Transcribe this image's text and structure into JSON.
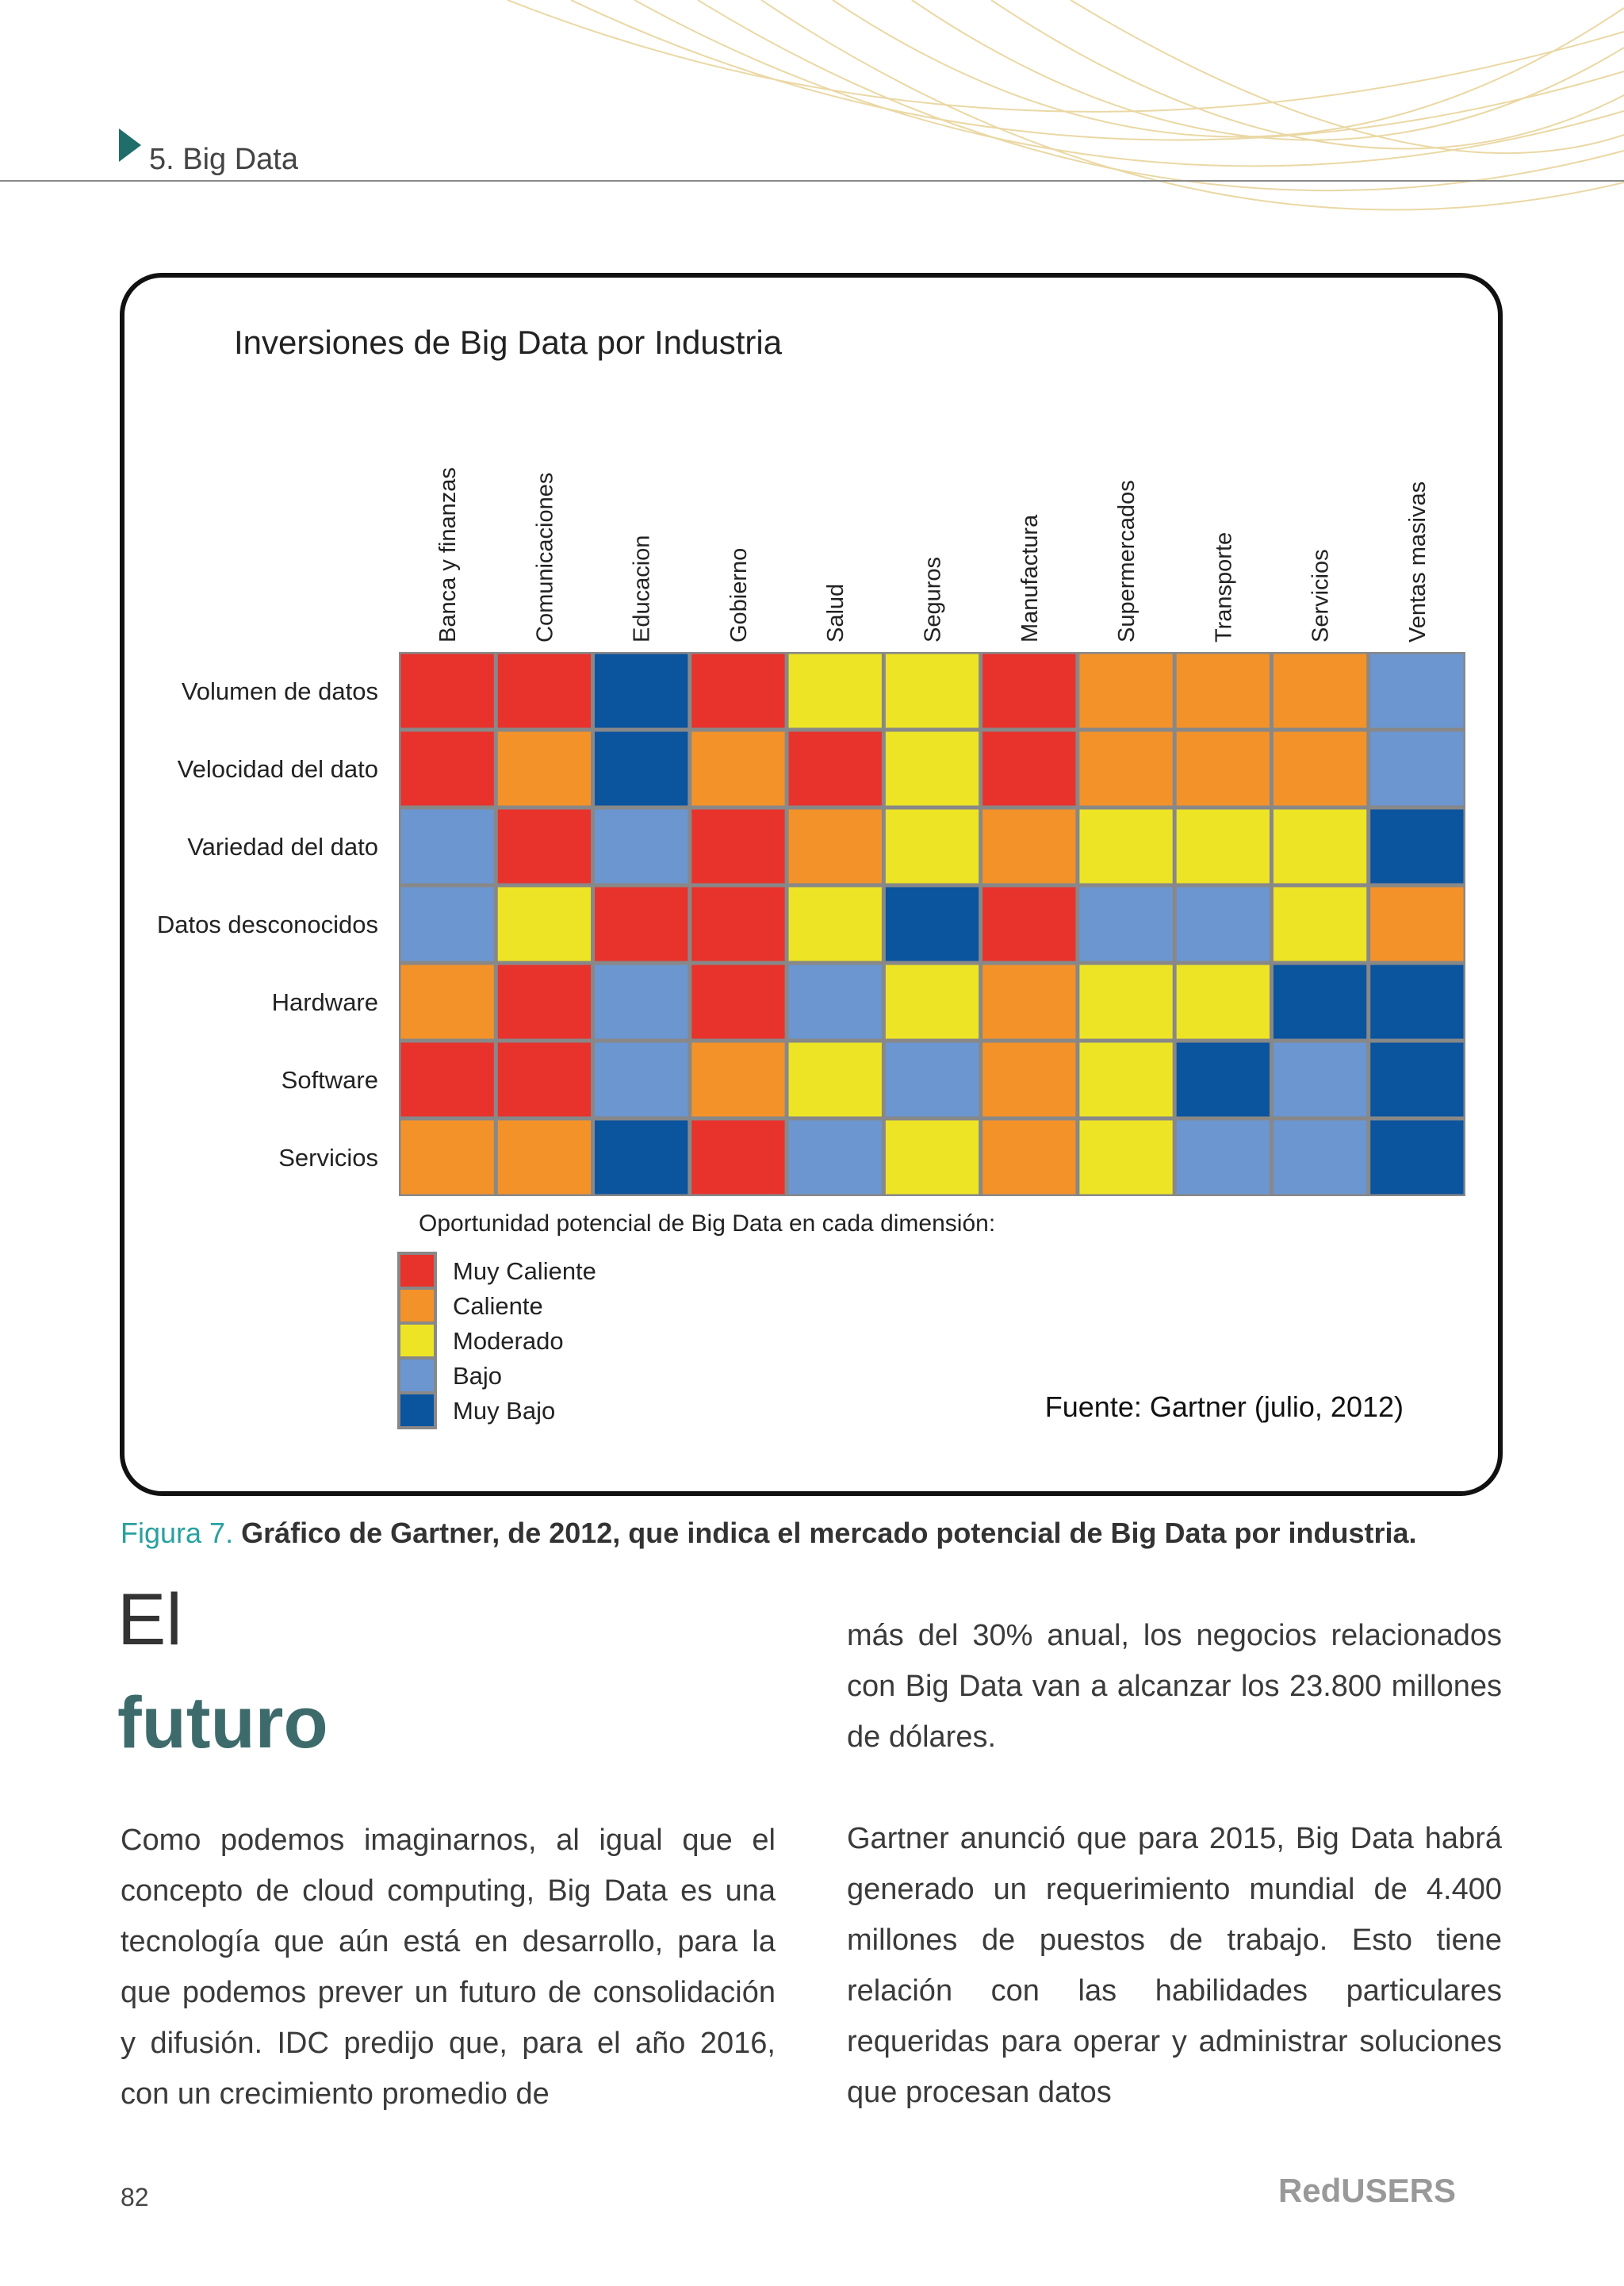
{
  "header": {
    "section": "5. Big Data"
  },
  "chart_data": {
    "type": "heatmap",
    "title": "Inversiones de Big Data por Industria",
    "categories": [
      "Banca y finanzas",
      "Comunicaciones",
      "Educacion",
      "Gobierno",
      "Salud",
      "Seguros",
      "Manufactura",
      "Supermercados",
      "Transporte",
      "Servicios",
      "Ventas masivas"
    ],
    "rows": [
      "Volumen de datos",
      "Velocidad del dato",
      "Variedad del dato",
      "Datos desconocidos",
      "Hardware",
      "Software",
      "Servicios"
    ],
    "legend_title": "Oportunidad potencial de Big Data en cada dimensión:",
    "levels": [
      {
        "name": "Muy Caliente",
        "color": "#e8322c"
      },
      {
        "name": "Caliente",
        "color": "#f4922a"
      },
      {
        "name": "Moderado",
        "color": "#eee426"
      },
      {
        "name": "Bajo",
        "color": "#6b96d0"
      },
      {
        "name": "Muy Bajo",
        "color": "#0b549e"
      }
    ],
    "values": [
      [
        0,
        0,
        4,
        0,
        2,
        2,
        0,
        1,
        1,
        1,
        3
      ],
      [
        0,
        1,
        4,
        1,
        0,
        2,
        0,
        1,
        1,
        1,
        3
      ],
      [
        3,
        0,
        3,
        0,
        1,
        2,
        1,
        2,
        2,
        2,
        4
      ],
      [
        3,
        2,
        0,
        0,
        2,
        4,
        0,
        3,
        3,
        2,
        1
      ],
      [
        1,
        0,
        3,
        0,
        3,
        2,
        1,
        2,
        2,
        4,
        4
      ],
      [
        0,
        0,
        3,
        1,
        2,
        3,
        1,
        2,
        4,
        3,
        4
      ],
      [
        1,
        1,
        4,
        0,
        3,
        2,
        1,
        2,
        3,
        3,
        4
      ]
    ],
    "source": "Fuente: Gartner (julio, 2012)"
  },
  "caption": {
    "label": "Figura 7.",
    "text": "Gráfico de Gartner, de 2012, que indica el mercado potencial de Big Data por industria."
  },
  "article": {
    "heading": [
      "El",
      "futuro"
    ],
    "column1": [
      "Como podemos imaginarnos, al igual que el concepto de cloud computing, Big Data es una tecnología que aún está en desarrollo, para la que podemos prever un futuro de consolidación y difusión. IDC predijo que, para el año 2016, con un crecimiento promedio de"
    ],
    "column2": [
      "más del 30% anual, los negocios relacionados con Big Data van a alcanzar los 23.800 millones de dólares.",
      "Gartner anunció que para 2015, Big Data habrá generado un requerimiento mundial de 4.400 millones de puestos de trabajo. Esto tiene relación con las habilidades particulares requeridas para operar y administrar soluciones que procesan datos"
    ]
  },
  "footer": {
    "page": "82",
    "brand": "RedUSERS"
  }
}
